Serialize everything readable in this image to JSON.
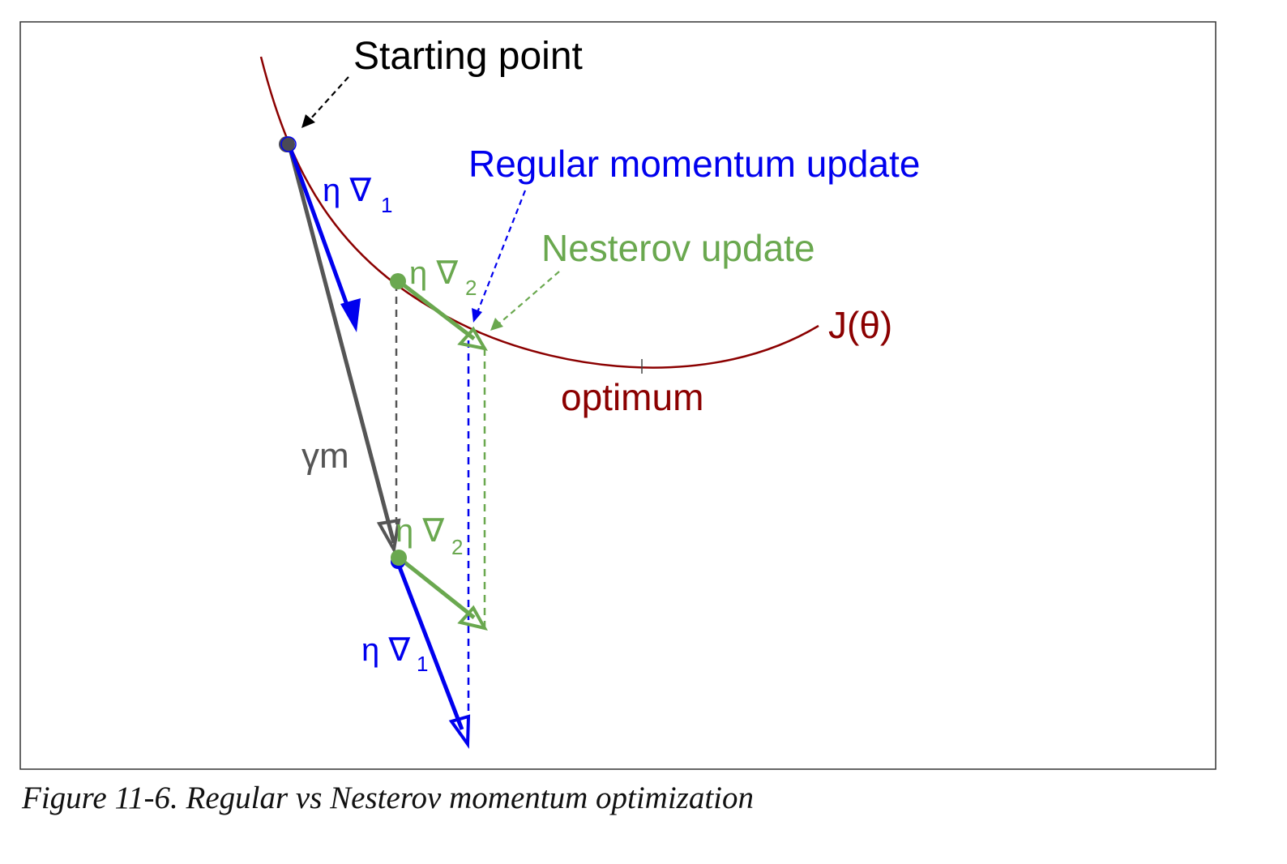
{
  "diagram": {
    "labels": {
      "starting_point": "Starting point",
      "regular_update": "Regular momentum update",
      "nesterov_update": "Nesterov update",
      "cost_function": "J(θ)",
      "optimum": "optimum",
      "momentum": "γm",
      "eta_nabla": "η ∇",
      "sub_1": "1",
      "sub_2": "2"
    },
    "colors": {
      "curve": "#8b0000",
      "regular": "#0000ee",
      "nesterov": "#6aa84f",
      "momentum": "#555555",
      "start_point": "#4a4a55",
      "annotation": "#000000"
    }
  },
  "caption": "Figure 11-6. Regular vs Nesterov momentum optimization"
}
